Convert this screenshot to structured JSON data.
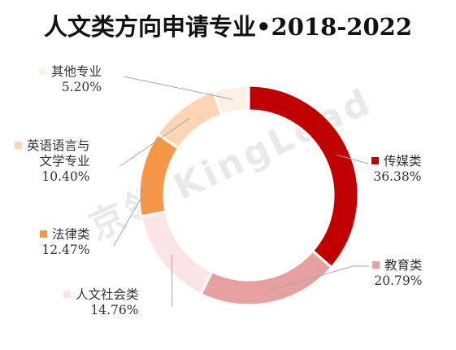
{
  "title": "人文类方向申请专业•2018-2022",
  "watermark": "京领 KingLead",
  "chart_data": {
    "type": "pie",
    "donut": true,
    "legend": "labels beside slices",
    "slices": [
      {
        "label": "传媒类",
        "value": 36.38,
        "value_label": "36.38%",
        "color": "#c00000"
      },
      {
        "label": "教育类",
        "value": 20.79,
        "value_label": "20.79%",
        "color": "#e6a0a0"
      },
      {
        "label": "人文社会类",
        "value": 14.76,
        "value_label": "14.76%",
        "color": "#fbe5e4"
      },
      {
        "label": "法律类",
        "value": 12.47,
        "value_label": "12.47%",
        "color": "#f79646"
      },
      {
        "label": "英语语言与文学专业",
        "label_lines": [
          "英语语言与",
          "文学专业"
        ],
        "value": 10.4,
        "value_label": "10.40%",
        "color": "#fcd5b4"
      },
      {
        "label": "其他专业",
        "value": 5.2,
        "value_label": "5.20%",
        "color": "#fdf0e6"
      }
    ]
  }
}
